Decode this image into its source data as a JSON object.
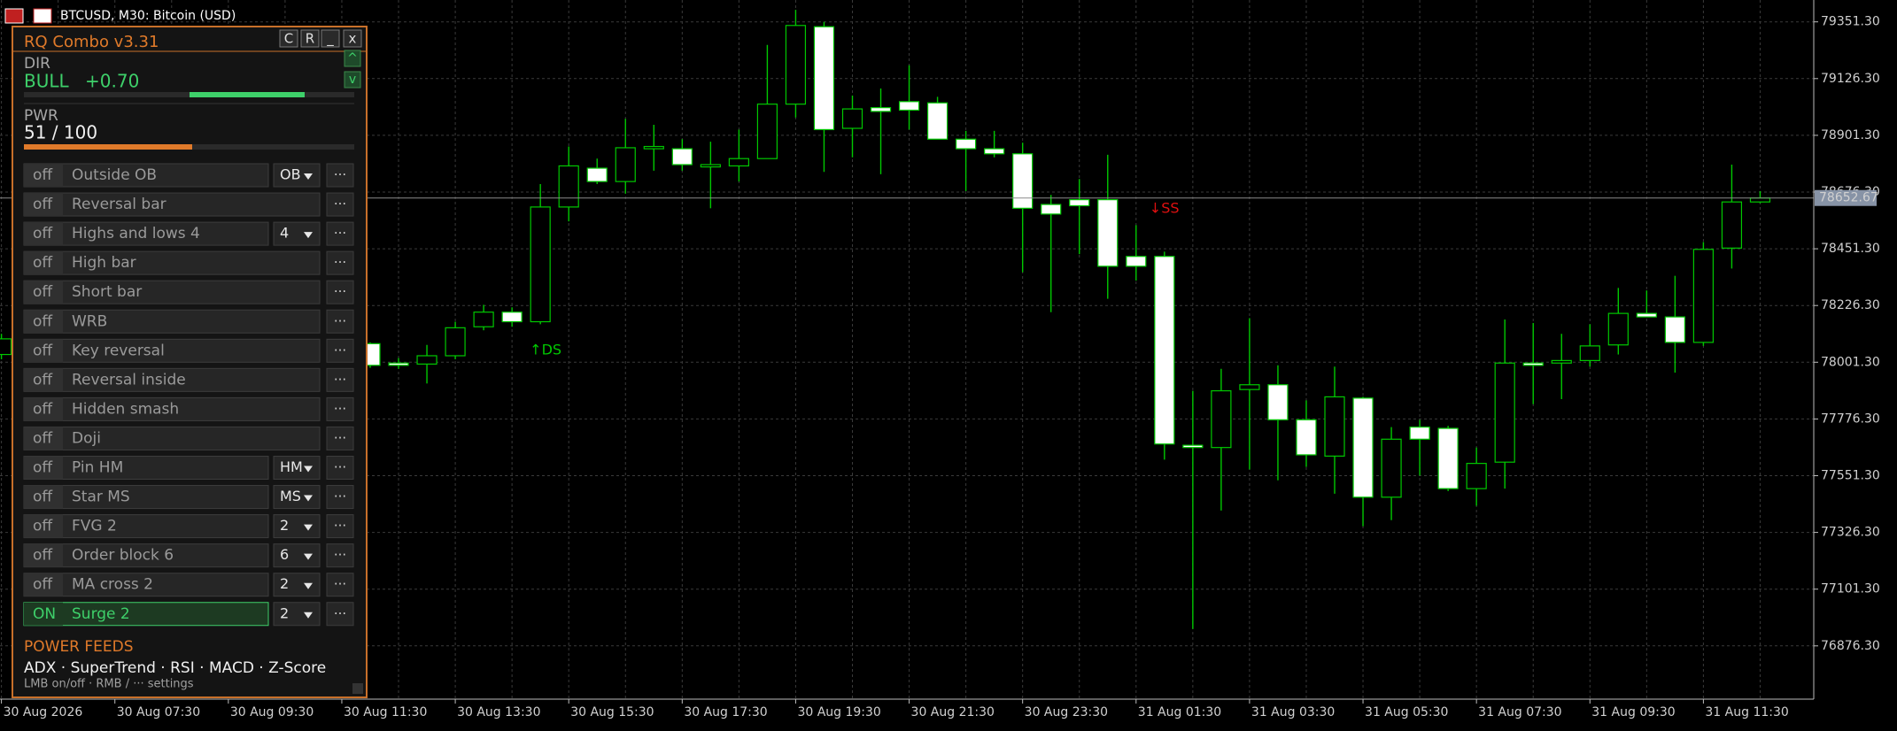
{
  "window": {
    "title": "BTCUSD, M30:  Bitcoin (USD)"
  },
  "panel": {
    "title": "RQ Combo   v3.31",
    "buttons": [
      "C",
      "R",
      "_",
      "x"
    ],
    "scroll": [
      "^",
      "v"
    ],
    "dir_label": "DIR",
    "dir_value": "BULL",
    "dir_score": "+0.70",
    "pwr_label": "PWR",
    "pwr_value": "51 / 100",
    "rows": [
      {
        "state": "off",
        "name": "Outside OB",
        "option": "OB",
        "menu": "···"
      },
      {
        "state": "off",
        "name": "Reversal bar",
        "menu": "···"
      },
      {
        "state": "off",
        "name": "Highs and lows 4",
        "option": "4",
        "menu": "···"
      },
      {
        "state": "off",
        "name": "High bar",
        "menu": "···"
      },
      {
        "state": "off",
        "name": "Short bar",
        "menu": "···"
      },
      {
        "state": "off",
        "name": "WRB",
        "menu": "···"
      },
      {
        "state": "off",
        "name": "Key reversal",
        "menu": "···"
      },
      {
        "state": "off",
        "name": "Reversal inside",
        "menu": "···"
      },
      {
        "state": "off",
        "name": "Hidden smash",
        "menu": "···"
      },
      {
        "state": "off",
        "name": "Doji",
        "menu": "···"
      },
      {
        "state": "off",
        "name": "Pin HM",
        "option": "HM",
        "menu": "···"
      },
      {
        "state": "off",
        "name": "Star MS",
        "option": "MS",
        "menu": "···"
      },
      {
        "state": "off",
        "name": "FVG 2",
        "option": "2",
        "menu": "···"
      },
      {
        "state": "off",
        "name": "Order block 6",
        "option": "6",
        "menu": "···"
      },
      {
        "state": "off",
        "name": "MA cross 2",
        "option": "2",
        "menu": "···"
      },
      {
        "state": "ON",
        "name": "Surge 2",
        "option": "2",
        "menu": "···"
      }
    ],
    "feeds_title": "POWER FEEDS",
    "feeds": "ADX  ·  SuperTrend  ·  RSI  ·  MACD  ·  Z-Score",
    "hint": "LMB on/off  ·  RMB / ··· settings"
  },
  "chart_data": {
    "type": "candlestick",
    "categories": [
      "30 Aug 2026",
      null,
      null,
      null,
      "30 Aug 07:30",
      null,
      null,
      null,
      "30 Aug 09:30",
      null,
      null,
      null,
      "30 Aug 11:30",
      null,
      null,
      null,
      "30 Aug 13:30",
      null,
      null,
      null,
      "30 Aug 15:30",
      null,
      null,
      null,
      "30 Aug 17:30",
      null,
      null,
      null,
      "30 Aug 19:30",
      null,
      null,
      null,
      "30 Aug 21:30",
      null,
      null,
      null,
      "30 Aug 23:30",
      null,
      null,
      null,
      "31 Aug 01:30",
      null,
      null,
      null,
      "31 Aug 03:30",
      null,
      null,
      null,
      "31 Aug 05:30",
      null,
      null,
      null,
      "31 Aug 07:30",
      null,
      null,
      null,
      "31 Aug 09:30",
      null,
      null,
      null,
      "31 Aug 11:30",
      null,
      null
    ],
    "open": [
      78032,
      null,
      null,
      null,
      null,
      null,
      null,
      null,
      null,
      null,
      null,
      null,
      null,
      78075,
      77998,
      77994,
      78027,
      78142,
      78200,
      78162,
      78617,
      78771,
      78718,
      78848,
      78848,
      78776,
      78780,
      78809,
      79025,
      79332,
      78929,
      79011,
      79035,
      79030,
      78886,
      78848,
      78828,
      78627,
      78646,
      78646,
      78421,
      78421,
      77672,
      77663,
      77893,
      77912,
      77773,
      77629,
      77859,
      77466,
      77744,
      77739,
      77500,
      77605,
      77998,
      77998,
      78008,
      78070,
      78195,
      78181,
      78080,
      78454,
      78637
    ],
    "high": [
      78114,
      null,
      null,
      null,
      null,
      null,
      null,
      null,
      null,
      null,
      null,
      null,
      null,
      78080,
      78018,
      78070,
      78162,
      78229,
      78219,
      78708,
      78857,
      78809,
      78967,
      78943,
      78886,
      78876,
      78924,
      79260,
      79399,
      79351,
      79059,
      79087,
      79179,
      79054,
      78919,
      78919,
      78872,
      78665,
      78728,
      78824,
      78545,
      78440,
      77888,
      77975,
      78176,
      77989,
      77850,
      77984,
      77864,
      77744,
      77773,
      77749,
      77663,
      78171,
      78157,
      78114,
      78152,
      78296,
      78286,
      78344,
      78478,
      78785,
      78680
    ],
    "low": [
      78013,
      null,
      null,
      null,
      null,
      null,
      null,
      null,
      null,
      null,
      null,
      null,
      null,
      77979,
      77975,
      77917,
      78013,
      78128,
      78142,
      78152,
      78560,
      78708,
      78670,
      78761,
      78761,
      78612,
      78718,
      78809,
      78972,
      78756,
      78814,
      78747,
      78924,
      78886,
      78680,
      78814,
      78358,
      78200,
      78430,
      78253,
      78325,
      77615,
      76943,
      77413,
      77576,
      77533,
      77586,
      77480,
      77351,
      77375,
      77552,
      77490,
      77432,
      77500,
      77835,
      77855,
      77984,
      78032,
      78181,
      77960,
      78066,
      78373,
      78632
    ],
    "close": [
      78094,
      null,
      null,
      null,
      null,
      null,
      null,
      null,
      null,
      null,
      null,
      null,
      null,
      77989,
      77989,
      78027,
      78138,
      78200,
      78162,
      78617,
      78780,
      78718,
      78852,
      78857,
      78785,
      78785,
      78809,
      79025,
      79337,
      78924,
      79006,
      78996,
      79001,
      78886,
      78848,
      78828,
      78612,
      78589,
      78622,
      78382,
      78382,
      77677,
      77663,
      77888,
      77912,
      77773,
      77634,
      77864,
      77466,
      77696,
      77696,
      77500,
      77600,
      77998,
      77989,
      78008,
      78066,
      78195,
      78181,
      78080,
      78449,
      78637,
      78652.67
    ],
    "up_color": "#000000",
    "down_color": "#ffffff",
    "wick_color": "#00c800",
    "ylim": [
      76665,
      79438
    ],
    "yticks": [
      {
        "value": 79351.3,
        "label": "79351.30"
      },
      {
        "value": 79126.3,
        "label": "79126.30"
      },
      {
        "value": 78901.3,
        "label": "78901.30"
      },
      {
        "value": 78676.3,
        "label": "78676.30"
      },
      {
        "value": 78451.3,
        "label": "78451.30"
      },
      {
        "value": 78226.3,
        "label": "78226.30"
      },
      {
        "value": 78001.3,
        "label": "78001.30"
      },
      {
        "value": 77776.3,
        "label": "77776.30"
      },
      {
        "value": 77551.3,
        "label": "77551.30"
      },
      {
        "value": 77326.3,
        "label": "77326.30"
      },
      {
        "value": 77101.3,
        "label": "77101.30"
      },
      {
        "value": 76876.3,
        "label": "76876.30"
      }
    ],
    "current_price": 78652.67,
    "grid": true,
    "annotations": [
      {
        "text": "↑DS",
        "color": "#00c800"
      },
      {
        "text": "↓SS",
        "color": "#e01010"
      }
    ]
  }
}
